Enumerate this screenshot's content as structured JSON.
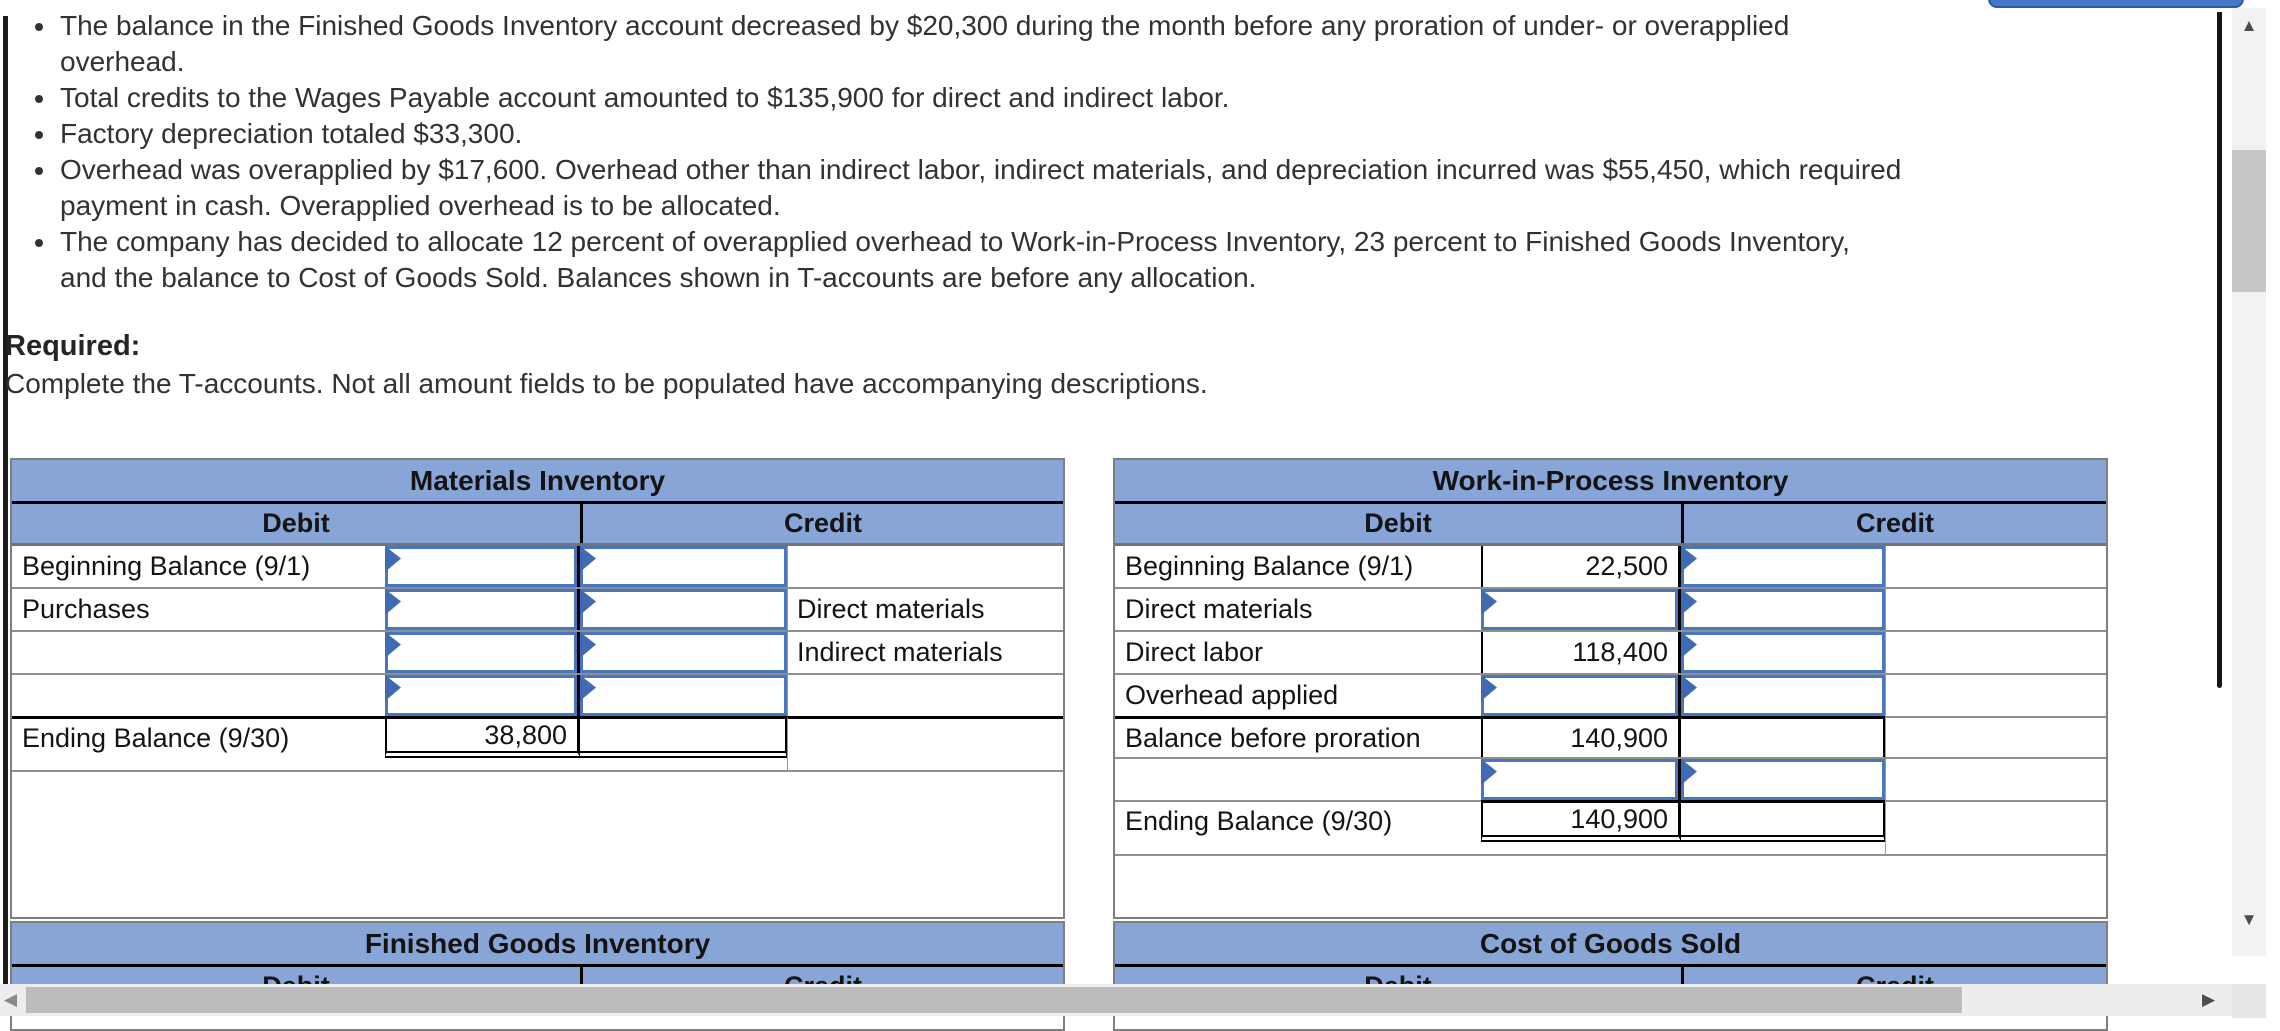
{
  "problem": {
    "bullets": [
      "The balance in the Finished Goods Inventory account decreased by $20,300 during the month before any proration of under- or overapplied overhead.",
      "Total credits to the Wages Payable account amounted to $135,900 for direct and indirect labor.",
      "Factory depreciation totaled $33,300.",
      "Overhead was overapplied by $17,600. Overhead other than indirect labor, indirect materials, and depreciation incurred was $55,450, which required payment in cash. Overapplied overhead is to be allocated.",
      "The company has decided to allocate 12 percent of overapplied overhead to Work-in-Process Inventory, 23 percent to Finished Goods Inventory, and the balance to Cost of Goods Sold. Balances shown in T-accounts are before any allocation."
    ],
    "required_label": "Required:",
    "required_text": "Complete the T-accounts. Not all amount fields to be populated have accompanying descriptions."
  },
  "accounts": [
    {
      "id": "materials-inventory",
      "title": "Materials Inventory",
      "debit_header": "Debit",
      "credit_header": "Credit",
      "rows": [
        {
          "label": "Beginning Balance (9/1)",
          "debit": {
            "kind": "input",
            "value": ""
          },
          "credit": {
            "kind": "input",
            "value": ""
          },
          "credit_label": ""
        },
        {
          "label": "Purchases",
          "debit": {
            "kind": "input",
            "value": ""
          },
          "credit": {
            "kind": "input",
            "value": ""
          },
          "credit_label": "Direct materials"
        },
        {
          "label": "",
          "debit": {
            "kind": "input",
            "value": ""
          },
          "credit": {
            "kind": "input",
            "value": ""
          },
          "credit_label": "Indirect materials"
        },
        {
          "label": "",
          "debit": {
            "kind": "input",
            "value": ""
          },
          "credit": {
            "kind": "input",
            "value": ""
          },
          "credit_label": ""
        },
        {
          "label": "Ending Balance (9/30)",
          "debit": {
            "kind": "total",
            "value": "38,800"
          },
          "credit": {
            "kind": "total",
            "value": ""
          },
          "credit_label": "",
          "thick_top": "row",
          "double_bottom": true
        }
      ]
    },
    {
      "id": "work-in-process-inventory",
      "title": "Work-in-Process Inventory",
      "debit_header": "Debit",
      "credit_header": "Credit",
      "rows": [
        {
          "label": "Beginning Balance (9/1)",
          "debit": {
            "kind": "static",
            "value": "22,500"
          },
          "credit": {
            "kind": "input",
            "value": ""
          },
          "credit_label": ""
        },
        {
          "label": "Direct materials",
          "debit": {
            "kind": "input",
            "value": ""
          },
          "credit": {
            "kind": "input",
            "value": ""
          },
          "credit_label": ""
        },
        {
          "label": "Direct labor",
          "debit": {
            "kind": "static",
            "value": "118,400"
          },
          "credit": {
            "kind": "input",
            "value": ""
          },
          "credit_label": ""
        },
        {
          "label": "Overhead applied",
          "debit": {
            "kind": "input",
            "value": ""
          },
          "credit": {
            "kind": "input",
            "value": ""
          },
          "credit_label": ""
        },
        {
          "label": "Balance before proration",
          "debit": {
            "kind": "static",
            "value": "140,900"
          },
          "credit": {
            "kind": "static",
            "value": ""
          },
          "credit_label": "",
          "thick_top": "label-and-amounts"
        },
        {
          "label": "",
          "debit": {
            "kind": "input",
            "value": ""
          },
          "credit": {
            "kind": "input",
            "value": ""
          },
          "credit_label": ""
        },
        {
          "label": "Ending Balance (9/30)",
          "debit": {
            "kind": "total",
            "value": "140,900"
          },
          "credit": {
            "kind": "total",
            "value": ""
          },
          "credit_label": "",
          "thick_top": "amounts",
          "double_bottom": true
        }
      ]
    },
    {
      "id": "finished-goods-inventory",
      "title": "Finished Goods Inventory",
      "debit_header": "Debit",
      "credit_header": "Credit",
      "rows": []
    },
    {
      "id": "cost-of-goods-sold",
      "title": "Cost of Goods Sold",
      "debit_header": "Debit",
      "credit_header": "Credit",
      "rows": []
    }
  ],
  "colors": {
    "table_header_blue": "#88a5d8",
    "input_border_blue": "#4a76c0",
    "input_flag_blue": "#3e6bb4",
    "grid_gray": "#8f8f8f",
    "emphasis_black": "#000000",
    "top_button_blue": "#4478ca"
  },
  "ui": {
    "scroll_up_icon": "▲",
    "scroll_down_icon": "▼",
    "scroll_left_icon": "◀",
    "scroll_right_icon": "▶"
  }
}
